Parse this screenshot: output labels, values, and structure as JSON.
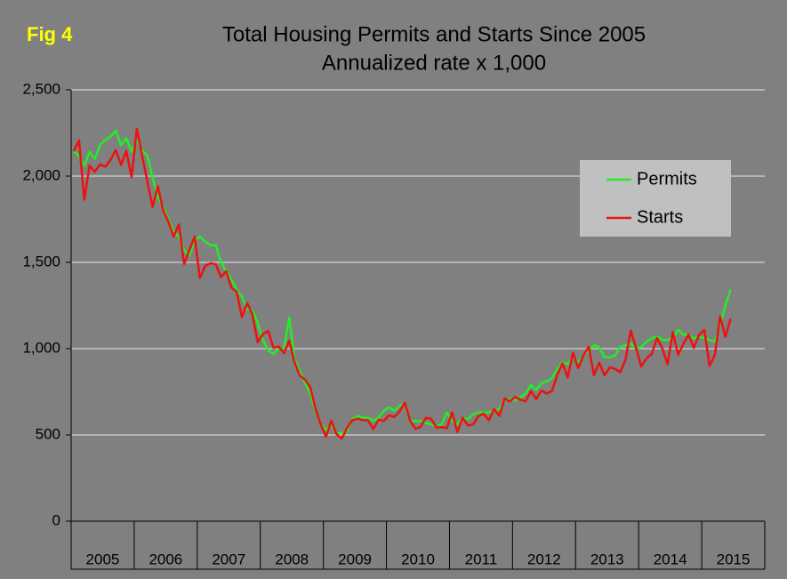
{
  "chart_data": {
    "type": "line",
    "label": "Fig 4",
    "title": "Total Housing Permits and Starts Since 2005",
    "subtitle": "Annualized rate x 1,000",
    "categories": [
      "2005",
      null,
      null,
      null,
      null,
      null,
      null,
      null,
      null,
      null,
      null,
      null,
      "2006",
      null,
      null,
      null,
      null,
      null,
      null,
      null,
      null,
      null,
      null,
      null,
      "2007",
      null,
      null,
      null,
      null,
      null,
      null,
      null,
      null,
      null,
      null,
      null,
      "2008",
      null,
      null,
      null,
      null,
      null,
      null,
      null,
      null,
      null,
      null,
      null,
      "2009",
      null,
      null,
      null,
      null,
      null,
      null,
      null,
      null,
      null,
      null,
      null,
      "2010",
      null,
      null,
      null,
      null,
      null,
      null,
      null,
      null,
      null,
      null,
      null,
      "2011",
      null,
      null,
      null,
      null,
      null,
      null,
      null,
      null,
      null,
      null,
      null,
      "2012",
      null,
      null,
      null,
      null,
      null,
      null,
      null,
      null,
      null,
      null,
      null,
      "2013",
      null,
      null,
      null,
      null,
      null,
      null,
      null,
      null,
      null,
      null,
      null,
      "2014",
      null,
      null,
      null,
      null,
      null,
      null,
      null,
      null,
      null,
      null,
      null,
      "2015",
      null,
      null,
      null,
      null,
      null,
      null,
      null,
      null,
      null,
      null,
      null
    ],
    "series": [
      {
        "name": "Permits",
        "color": "#22ee22",
        "values": [
          2144,
          2115,
          2060,
          2140,
          2100,
          2180,
          2210,
          2230,
          2263,
          2180,
          2220,
          2140,
          2210,
          2147,
          2120,
          1990,
          1880,
          1820,
          1750,
          1680,
          1650,
          1570,
          1540,
          1630,
          1650,
          1620,
          1600,
          1600,
          1500,
          1450,
          1400,
          1340,
          1300,
          1230,
          1220,
          1150,
          1050,
          990,
          970,
          1000,
          1000,
          1180,
          940,
          870,
          800,
          740,
          640,
          560,
          530,
          560,
          510,
          510,
          520,
          590,
          610,
          600,
          600,
          580,
          600,
          640,
          660,
          640,
          670,
          680,
          580,
          580,
          580,
          570,
          560,
          550,
          560,
          630,
          580,
          560,
          600,
          590,
          620,
          630,
          630,
          630,
          640,
          650,
          700,
          710,
          700,
          720,
          740,
          790,
          760,
          800,
          810,
          830,
          880,
          920,
          910,
          950,
          920,
          960,
          990,
          1020,
          1010,
          950,
          950,
          960,
          1010,
          1020,
          1030,
          1000,
          1010,
          1040,
          1060,
          1070,
          1050,
          1050,
          1060,
          1110,
          1080,
          1080,
          1060,
          1070,
          1060,
          1050,
          1040,
          1140,
          1250,
          1343,
          null,
          null,
          null,
          null,
          null,
          null
        ]
      },
      {
        "name": "Starts",
        "color": "#ee1111",
        "values": [
          2144,
          2207,
          1864,
          2061,
          2025,
          2068,
          2054,
          2095,
          2151,
          2065,
          2147,
          1994,
          2273,
          2119,
          1969,
          1821,
          1942,
          1802,
          1737,
          1650,
          1720,
          1491,
          1570,
          1649,
          1409,
          1480,
          1495,
          1490,
          1415,
          1448,
          1354,
          1330,
          1183,
          1264,
          1197,
          1037,
          1084,
          1103,
          1005,
          1013,
          973,
          1046,
          923,
          844,
          820,
          777,
          652,
          560,
          490,
          582,
          505,
          478,
          540,
          585,
          594,
          586,
          585,
          534,
          588,
          581,
          614,
          604,
          636,
          687,
          583,
          536,
          546,
          599,
          594,
          543,
          545,
          539,
          630,
          517,
          600,
          554,
          561,
          608,
          623,
          585,
          650,
          610,
          711,
          694,
          720,
          704,
          695,
          753,
          708,
          757,
          740,
          754,
          847,
          915,
          833,
          976,
          888,
          962,
          1010,
          846,
          919,
          845,
          891,
          883,
          863,
          936,
          1105,
          1003,
          897,
          943,
          970,
          1062,
          1001,
          909,
          1095,
          965,
          1027,
          1081,
          1004,
          1080,
          1108,
          900,
          964,
          1187,
          1068,
          1174,
          null,
          null,
          null,
          null,
          null,
          null
        ]
      }
    ],
    "ylim": [
      0,
      2500
    ],
    "yticks": [
      0,
      500,
      {
        "value": 1000,
        "label": "1,000"
      },
      {
        "value": 1500,
        "label": "1,500"
      },
      {
        "value": 2000,
        "label": "2,000"
      },
      {
        "value": 2500,
        "label": "2,500"
      }
    ],
    "grid": true,
    "legend": "upper right"
  }
}
